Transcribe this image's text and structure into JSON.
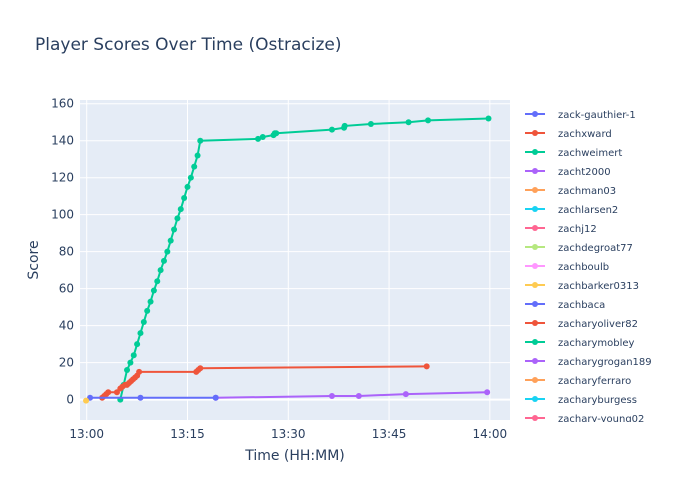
{
  "chart_data": {
    "type": "line",
    "title": "Player Scores Over Time (Ostracize)",
    "xlabel": "Time (HH:MM)",
    "ylabel": "Score",
    "x_ticks": [
      "13:00",
      "13:15",
      "13:30",
      "13:45",
      "14:00"
    ],
    "x_tick_minutes": [
      0,
      15,
      30,
      45,
      60
    ],
    "xlim_minutes": [
      -1,
      63
    ],
    "y_ticks": [
      0,
      20,
      40,
      60,
      80,
      100,
      120,
      140,
      160
    ],
    "ylim": [
      -11,
      162
    ],
    "grid": true,
    "legend_position": "right",
    "legend": [
      {
        "name": "zack-gauthier-1",
        "color": "#636efa"
      },
      {
        "name": "zachxward",
        "color": "#EF553B"
      },
      {
        "name": "zachweimert",
        "color": "#00cc96"
      },
      {
        "name": "zacht2000",
        "color": "#ab63fa"
      },
      {
        "name": "zachman03",
        "color": "#FFA15A"
      },
      {
        "name": "zachlarsen2",
        "color": "#19d3f3"
      },
      {
        "name": "zachj12",
        "color": "#FF6692"
      },
      {
        "name": "zachdegroat77",
        "color": "#B6E880"
      },
      {
        "name": "zachboulb",
        "color": "#FF97FF"
      },
      {
        "name": "zachbarker0313",
        "color": "#FECB52"
      },
      {
        "name": "zachbaca",
        "color": "#636efa"
      },
      {
        "name": "zacharyoliver82",
        "color": "#EF553B"
      },
      {
        "name": "zacharymobley",
        "color": "#00cc96"
      },
      {
        "name": "zacharygrogan189",
        "color": "#ab63fa"
      },
      {
        "name": "zacharyferraro",
        "color": "#FFA15A"
      },
      {
        "name": "zacharyburgess",
        "color": "#19d3f3"
      },
      {
        "name": "zachary-young02",
        "color": "#FF6692"
      }
    ],
    "series": [
      {
        "name": "zacharymobley",
        "color": "#00cc96",
        "x": [
          5.0,
          5.5,
          6.0,
          6.5,
          7.0,
          7.5,
          8.0,
          8.5,
          9.0,
          9.5,
          10.0,
          10.5,
          11.0,
          11.5,
          12.0,
          12.5,
          13.0,
          13.5,
          14.0,
          14.5,
          15.0,
          15.5,
          16.0,
          16.5,
          16.9,
          25.5,
          26.2,
          27.8,
          28.0,
          28.2,
          36.5,
          38.3,
          38.4,
          42.3,
          47.9,
          50.8,
          59.8
        ],
        "y": [
          0,
          8,
          16,
          20,
          24,
          30,
          36,
          42,
          48,
          53,
          59,
          64,
          70,
          75,
          80,
          86,
          92,
          98,
          103,
          109,
          115,
          120,
          126,
          132,
          140,
          141,
          142,
          143,
          144,
          144,
          146,
          147,
          148,
          149,
          150,
          151,
          152
        ]
      },
      {
        "name": "zacharyoliver82",
        "color": "#EF553B",
        "x": [
          2.3,
          2.6,
          2.9,
          3.2,
          4.5,
          5.0,
          5.3,
          5.7,
          6.0,
          6.3,
          6.6,
          6.9,
          7.2,
          7.5,
          7.8,
          16.3,
          16.6,
          16.9,
          50.6
        ],
        "y": [
          1,
          2,
          3,
          4,
          4,
          6,
          7,
          8,
          8,
          9,
          10,
          11,
          12,
          13,
          15,
          15,
          16,
          17,
          18
        ]
      },
      {
        "name": "zacharygrogan189",
        "color": "#ab63fa",
        "x": [
          19.2,
          36.5,
          40.5,
          47.5,
          59.6
        ],
        "y": [
          1,
          2,
          2,
          3,
          4
        ]
      },
      {
        "name": "zachbaca",
        "color": "#636efa",
        "x": [
          0.5,
          8.0,
          19.2
        ],
        "y": [
          1,
          1,
          1
        ]
      },
      {
        "name": "zachbarker0313",
        "color": "#FECB52",
        "x": [
          -0.1
        ],
        "y": [
          -0.5
        ]
      }
    ]
  }
}
